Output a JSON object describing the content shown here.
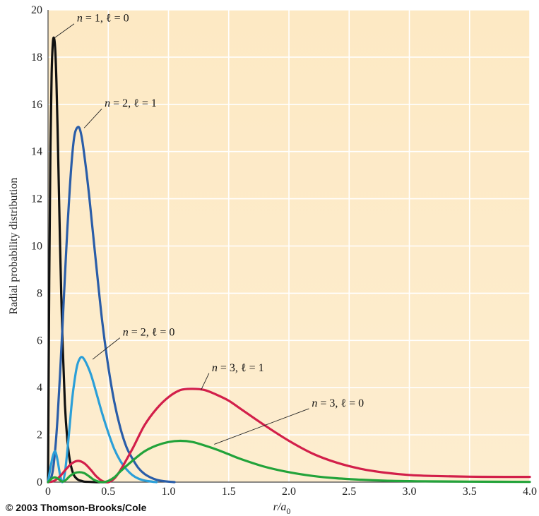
{
  "chart_data": {
    "type": "line",
    "ylabel": "Radial probability distribution",
    "xlabel_main": "r/a",
    "xlabel_sub": "0",
    "xlim": [
      0,
      4.0
    ],
    "ylim": [
      0,
      20
    ],
    "x_ticks": [
      "0",
      "0.5",
      "1.0",
      "1.5",
      "2.0",
      "2.5",
      "3.0",
      "3.5",
      "4.0"
    ],
    "y_ticks": [
      "0",
      "2",
      "4",
      "6",
      "8",
      "10",
      "12",
      "14",
      "16",
      "18",
      "20"
    ],
    "grid": true,
    "background": "#fdedcf",
    "series": [
      {
        "name": "n = 1, ℓ = 0",
        "color": "#111111",
        "x": [
          0,
          0.01,
          0.02,
          0.03,
          0.04,
          0.05,
          0.06,
          0.07,
          0.08,
          0.09,
          0.1,
          0.12,
          0.14,
          0.16,
          0.18,
          0.2,
          0.22,
          0.25,
          0.28,
          0.3,
          0.35,
          0.4,
          0.5
        ],
        "values": [
          0,
          8.5,
          14.2,
          17.3,
          18.6,
          18.8,
          18.3,
          16.9,
          14.8,
          12.4,
          10.0,
          6.0,
          3.3,
          1.8,
          0.95,
          0.5,
          0.25,
          0.1,
          0.05,
          0.02,
          0.01,
          0,
          0
        ]
      },
      {
        "name": "n = 2, ℓ = 1",
        "color": "#2a5da8",
        "x": [
          0,
          0.02,
          0.04,
          0.06,
          0.08,
          0.1,
          0.12,
          0.14,
          0.16,
          0.18,
          0.2,
          0.22,
          0.24,
          0.26,
          0.28,
          0.3,
          0.32,
          0.34,
          0.36,
          0.38,
          0.4,
          0.45,
          0.5,
          0.55,
          0.6,
          0.65,
          0.7,
          0.75,
          0.8,
          0.85,
          0.9,
          0.95,
          1.0,
          1.05
        ],
        "values": [
          0,
          0.1,
          0.5,
          1.4,
          2.8,
          4.6,
          6.6,
          8.7,
          10.7,
          12.4,
          13.8,
          14.7,
          15.0,
          15.0,
          14.6,
          13.9,
          13.1,
          12.2,
          11.2,
          10.2,
          9.2,
          6.8,
          4.9,
          3.4,
          2.3,
          1.5,
          1.0,
          0.6,
          0.35,
          0.2,
          0.1,
          0.05,
          0.02,
          0
        ]
      },
      {
        "name": "n = 2, ℓ = 0",
        "color": "#2b9fd8",
        "x": [
          0,
          0.02,
          0.04,
          0.06,
          0.08,
          0.1,
          0.12,
          0.14,
          0.16,
          0.18,
          0.2,
          0.22,
          0.24,
          0.26,
          0.28,
          0.3,
          0.33,
          0.36,
          0.4,
          0.45,
          0.5,
          0.55,
          0.6,
          0.65,
          0.7,
          0.75,
          0.8,
          0.85,
          0.9
        ],
        "values": [
          0,
          0.6,
          1.1,
          1.3,
          0.9,
          0.3,
          0,
          0.4,
          1.3,
          2.4,
          3.5,
          4.3,
          4.9,
          5.2,
          5.3,
          5.2,
          4.9,
          4.5,
          3.8,
          2.9,
          2.1,
          1.4,
          0.9,
          0.55,
          0.3,
          0.15,
          0.07,
          0.03,
          0
        ]
      },
      {
        "name": "n = 3, ℓ = 1",
        "color": "#d21f4a",
        "x": [
          0,
          0.05,
          0.1,
          0.15,
          0.2,
          0.25,
          0.3,
          0.35,
          0.4,
          0.45,
          0.5,
          0.55,
          0.6,
          0.7,
          0.8,
          0.9,
          1.0,
          1.1,
          1.2,
          1.3,
          1.4,
          1.5,
          1.6,
          1.8,
          2.0,
          2.2,
          2.4,
          2.6,
          2.8,
          3.0,
          3.2,
          3.5,
          3.8,
          4.0
        ],
        "values": [
          0,
          0.05,
          0.25,
          0.55,
          0.8,
          0.9,
          0.8,
          0.55,
          0.25,
          0.05,
          0,
          0.15,
          0.5,
          1.4,
          2.4,
          3.1,
          3.6,
          3.9,
          3.95,
          3.9,
          3.7,
          3.45,
          3.1,
          2.4,
          1.75,
          1.2,
          0.82,
          0.56,
          0.4,
          0.3,
          0.26,
          0.23,
          0.22,
          0.22
        ]
      },
      {
        "name": "n = 3, ℓ = 0",
        "color": "#22a33a",
        "x": [
          0,
          0.03,
          0.06,
          0.09,
          0.12,
          0.15,
          0.18,
          0.22,
          0.26,
          0.3,
          0.34,
          0.38,
          0.42,
          0.46,
          0.5,
          0.55,
          0.6,
          0.7,
          0.8,
          0.9,
          1.0,
          1.1,
          1.2,
          1.3,
          1.4,
          1.5,
          1.6,
          1.8,
          2.0,
          2.2,
          2.4,
          2.6,
          2.8,
          3.0,
          3.2,
          3.5,
          4.0
        ],
        "values": [
          0,
          0.15,
          0.2,
          0.12,
          0.02,
          0.1,
          0.25,
          0.38,
          0.42,
          0.38,
          0.25,
          0.1,
          0.02,
          0,
          0.05,
          0.2,
          0.45,
          0.9,
          1.3,
          1.55,
          1.7,
          1.75,
          1.7,
          1.55,
          1.38,
          1.18,
          0.98,
          0.65,
          0.42,
          0.26,
          0.16,
          0.1,
          0.06,
          0.04,
          0.03,
          0.02,
          0.01
        ]
      }
    ],
    "annotations": [
      {
        "series": 0,
        "prefix": "n",
        "text": " = 1, ℓ = 0",
        "x": 0.24,
        "y": 19.5,
        "px": 0.05,
        "py": 18.8
      },
      {
        "series": 1,
        "prefix": "n",
        "text": " = 2, ℓ = 1",
        "x": 0.47,
        "y": 15.9,
        "px": 0.3,
        "py": 15.0
      },
      {
        "series": 2,
        "prefix": "n",
        "text": " = 2, ℓ = 0",
        "x": 0.62,
        "y": 6.2,
        "px": 0.37,
        "py": 5.2
      },
      {
        "series": 3,
        "prefix": "n",
        "text": " = 3, ℓ = 1",
        "x": 1.36,
        "y": 4.7,
        "px": 1.27,
        "py": 3.9
      },
      {
        "series": 4,
        "prefix": "n",
        "text": " = 3, ℓ = 0",
        "x": 2.19,
        "y": 3.2,
        "px": 1.38,
        "py": 1.6
      }
    ]
  },
  "copyright": "© 2003 Thomson-Brooks/Cole"
}
